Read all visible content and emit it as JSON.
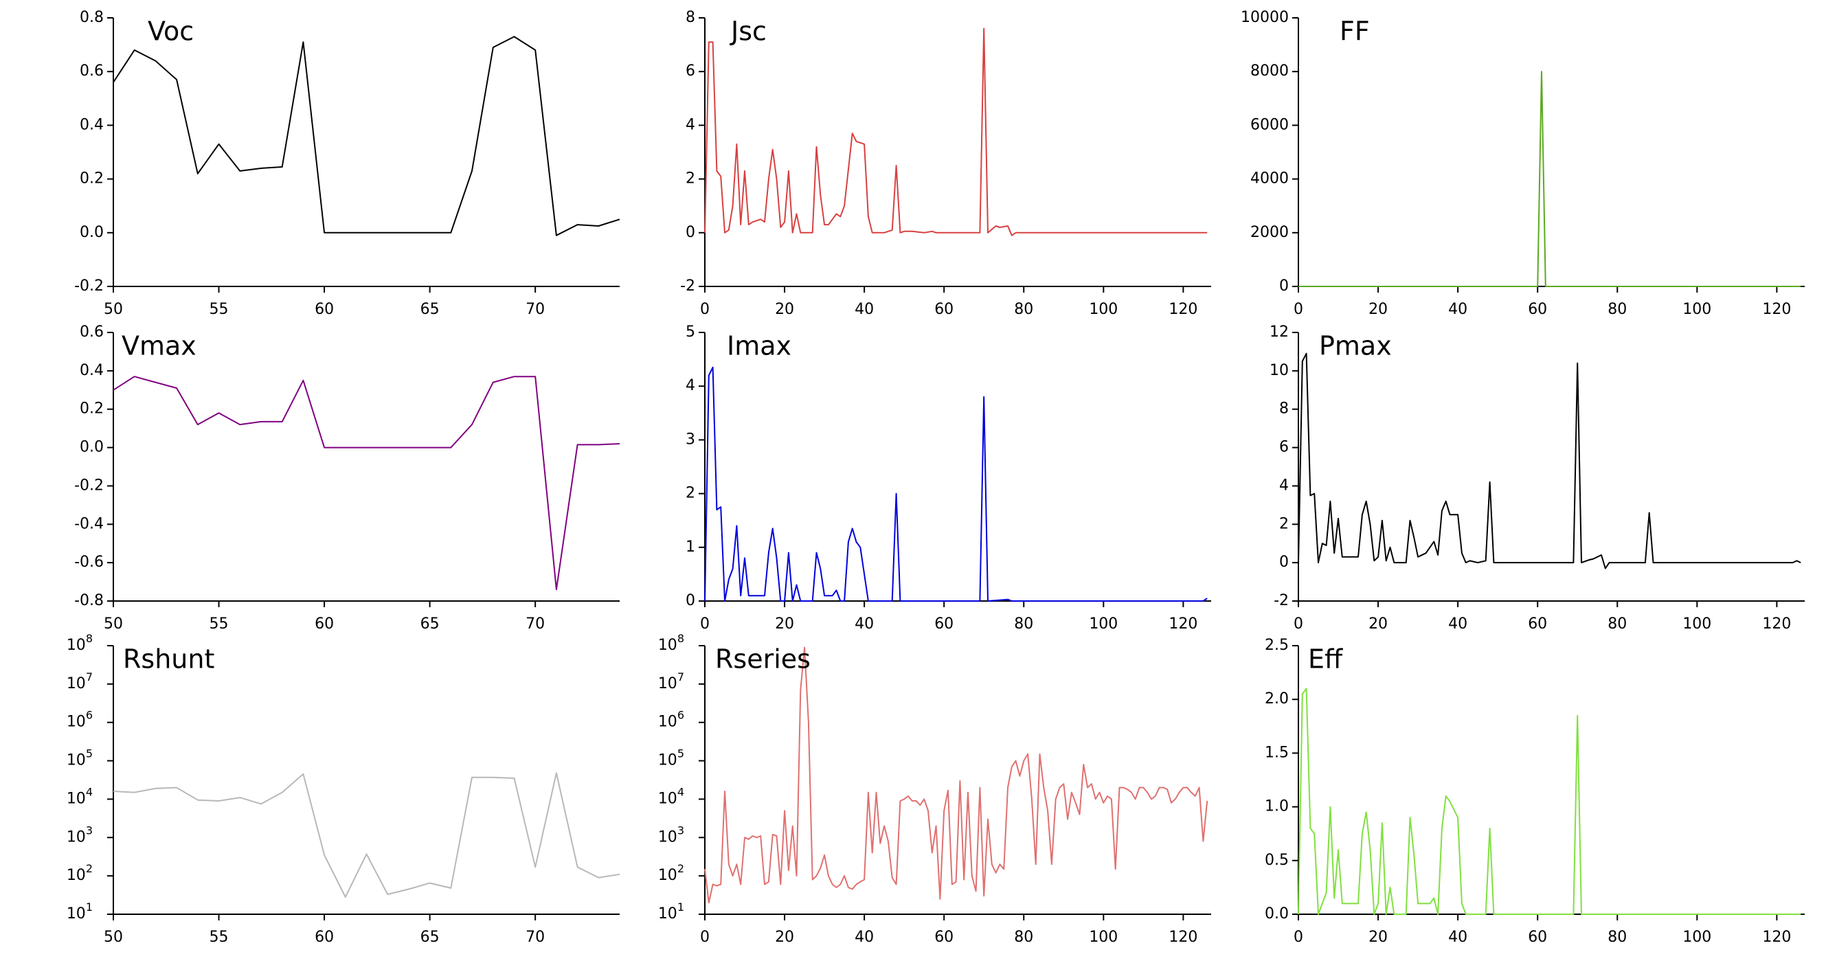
{
  "chart_data": [
    {
      "type": "line",
      "title": "Voc",
      "color": "#000000",
      "xlim": [
        50,
        74
      ],
      "xticks": [
        50,
        55,
        60,
        65,
        70
      ],
      "ylim": [
        -0.2,
        0.8
      ],
      "yticks": [
        -0.2,
        {
          "value": 0,
          "label": "0.0"
        },
        0.2,
        0.4,
        0.6,
        0.8
      ],
      "x": [
        50,
        51,
        52,
        53,
        54,
        55,
        56,
        57,
        58,
        59,
        60,
        61,
        62,
        63,
        64,
        65,
        66,
        67,
        68,
        69,
        70,
        71,
        72,
        73,
        74
      ],
      "values": [
        0.56,
        0.68,
        0.64,
        0.57,
        0.22,
        0.33,
        0.23,
        0.24,
        0.245,
        0.71,
        0,
        0,
        0,
        0,
        0,
        0,
        0,
        0.23,
        0.69,
        0.73,
        0.68,
        -0.01,
        0.03,
        0.025,
        0.05
      ]
    },
    {
      "type": "line",
      "title": "Jsc",
      "color": "#d84040",
      "xlim": [
        0,
        127
      ],
      "xticks": [
        0,
        20,
        40,
        60,
        80,
        100,
        120
      ],
      "ylim": [
        -2,
        8
      ],
      "yticks": [
        -2,
        0,
        2,
        4,
        6,
        8
      ],
      "x": [
        0,
        1,
        2,
        3,
        4,
        5,
        6,
        7,
        8,
        9,
        10,
        11,
        12,
        14,
        15,
        16,
        17,
        18,
        19,
        20,
        21,
        22,
        23,
        24,
        27,
        28,
        29,
        30,
        31,
        32,
        33,
        34,
        35,
        37,
        38,
        40,
        41,
        42,
        45,
        47,
        48,
        49,
        50,
        52,
        55,
        57,
        58,
        69,
        70,
        71,
        73,
        74,
        76,
        77,
        78,
        126
      ],
      "values": [
        0,
        7.1,
        7.1,
        2.3,
        2.1,
        0,
        0.1,
        1.0,
        3.3,
        0.3,
        2.3,
        0.3,
        0.4,
        0.5,
        0.4,
        2.0,
        3.1,
        2.0,
        0.2,
        0.4,
        2.3,
        0,
        0.7,
        0,
        0,
        3.2,
        1.4,
        0.3,
        0.3,
        0.5,
        0.7,
        0.6,
        1.0,
        3.7,
        3.4,
        3.3,
        0.6,
        0,
        0,
        0.1,
        2.5,
        0,
        0.05,
        0.05,
        0,
        0.05,
        0,
        0,
        7.6,
        0,
        0.25,
        0.2,
        0.25,
        -0.1,
        0,
        0
      ]
    },
    {
      "type": "line",
      "title": "FF",
      "color": "#5aaa20",
      "xlim": [
        0,
        127
      ],
      "xticks": [
        0,
        20,
        40,
        60,
        80,
        100,
        120
      ],
      "ylim": [
        0,
        10000
      ],
      "yticks": [
        0,
        2000,
        4000,
        6000,
        8000,
        10000
      ],
      "x": [
        0,
        60,
        61,
        62,
        126
      ],
      "values": [
        0,
        0,
        8000,
        0,
        0
      ]
    },
    {
      "type": "line",
      "title": "Vmax",
      "color": "#800080",
      "xlim": [
        50,
        74
      ],
      "xticks": [
        50,
        55,
        60,
        65,
        70
      ],
      "ylim": [
        -0.8,
        0.6
      ],
      "yticks": [
        -0.8,
        -0.6,
        -0.4,
        -0.2,
        {
          "value": 0,
          "label": "0.0"
        },
        0.2,
        0.4,
        0.6
      ],
      "x": [
        50,
        51,
        52,
        53,
        54,
        55,
        56,
        57,
        58,
        59,
        60,
        61,
        62,
        63,
        64,
        65,
        66,
        67,
        68,
        69,
        70,
        71,
        72,
        73,
        74
      ],
      "values": [
        0.3,
        0.37,
        0.34,
        0.31,
        0.12,
        0.18,
        0.12,
        0.135,
        0.135,
        0.35,
        0,
        0,
        0,
        0,
        0,
        0,
        0,
        0.12,
        0.34,
        0.37,
        0.37,
        -0.74,
        0.015,
        0.015,
        0.02
      ]
    },
    {
      "type": "line",
      "title": "Imax",
      "color": "#0000dd",
      "xlim": [
        0,
        127
      ],
      "xticks": [
        0,
        20,
        40,
        60,
        80,
        100,
        120
      ],
      "ylim": [
        0,
        5
      ],
      "yticks": [
        0,
        1,
        2,
        3,
        4,
        5
      ],
      "x": [
        0,
        1,
        2,
        3,
        4,
        5,
        6,
        7,
        8,
        9,
        10,
        11,
        15,
        16,
        17,
        18,
        19,
        20,
        21,
        22,
        23,
        24,
        27,
        28,
        29,
        30,
        32,
        33,
        34,
        35,
        36,
        37,
        38,
        39,
        40,
        41,
        47,
        48,
        49,
        69,
        70,
        71,
        76,
        77,
        125,
        126
      ],
      "values": [
        0,
        4.2,
        4.35,
        1.7,
        1.75,
        0,
        0.4,
        0.6,
        1.4,
        0.1,
        0.8,
        0.1,
        0.1,
        0.9,
        1.35,
        0.8,
        0,
        0,
        0.9,
        0,
        0.3,
        0,
        0,
        0.9,
        0.6,
        0.1,
        0.1,
        0.2,
        0,
        0,
        1.1,
        1.35,
        1.1,
        1.0,
        0.5,
        0,
        0,
        2.0,
        0,
        0,
        3.8,
        0,
        0.03,
        0,
        0,
        0.05
      ]
    },
    {
      "type": "line",
      "title": "Pmax",
      "color": "#000000",
      "xlim": [
        0,
        127
      ],
      "xticks": [
        0,
        20,
        40,
        60,
        80,
        100,
        120
      ],
      "ylim": [
        -2,
        12
      ],
      "yticks": [
        -2,
        0,
        2,
        4,
        6,
        8,
        10,
        12
      ],
      "x": [
        0,
        1,
        2,
        3,
        4,
        5,
        6,
        7,
        8,
        9,
        10,
        11,
        15,
        16,
        17,
        18,
        19,
        20,
        21,
        22,
        23,
        24,
        27,
        28,
        29,
        30,
        32,
        33,
        34,
        35,
        36,
        37,
        38,
        40,
        41,
        42,
        43,
        45,
        47,
        48,
        49,
        69,
        70,
        71,
        73,
        74,
        76,
        77,
        78,
        87,
        88,
        89,
        124,
        125,
        126
      ],
      "values": [
        0,
        10.5,
        10.9,
        3.5,
        3.6,
        0,
        1.0,
        0.9,
        3.2,
        0.5,
        2.3,
        0.3,
        0.3,
        2.5,
        3.2,
        2.0,
        0.1,
        0.3,
        2.2,
        0.1,
        0.8,
        0,
        0,
        2.2,
        1.3,
        0.3,
        0.5,
        0.8,
        1.1,
        0.4,
        2.7,
        3.2,
        2.5,
        2.5,
        0.5,
        0,
        0.1,
        0,
        0.1,
        4.2,
        0,
        0,
        10.4,
        0,
        0.15,
        0.2,
        0.4,
        -0.3,
        0,
        0,
        2.6,
        0,
        0,
        0.1,
        0
      ]
    },
    {
      "type": "line",
      "title": "Rshunt",
      "color": "#b8b8b8",
      "log_scale": true,
      "xlim": [
        50,
        74
      ],
      "xticks": [
        50,
        55,
        60,
        65,
        70
      ],
      "ylim": [
        10,
        100000000
      ],
      "yticks": [
        {
          "value": 10,
          "label": "10",
          "sup": "1"
        },
        {
          "value": 100,
          "label": "10",
          "sup": "2"
        },
        {
          "value": 1000,
          "label": "10",
          "sup": "3"
        },
        {
          "value": 10000,
          "label": "10",
          "sup": "4"
        },
        {
          "value": 100000,
          "label": "10",
          "sup": "5"
        },
        {
          "value": 1000000,
          "label": "10",
          "sup": "6"
        },
        {
          "value": 10000000,
          "label": "10",
          "sup": "7"
        },
        {
          "value": 100000000,
          "label": "10",
          "sup": "8"
        }
      ],
      "x": [
        50,
        51,
        52,
        53,
        54,
        55,
        56,
        57,
        58,
        59,
        60,
        61,
        62,
        63,
        64,
        65,
        66,
        67,
        68,
        69,
        70,
        71,
        72,
        73,
        74
      ],
      "values": [
        16000,
        15000,
        19000,
        20000,
        9500,
        9000,
        11000,
        7500,
        15000,
        45000,
        350,
        28,
        370,
        33,
        45,
        65,
        48,
        37000,
        37000,
        35000,
        170,
        48000,
        170,
        90,
        110
      ]
    },
    {
      "type": "line",
      "title": "Rseries",
      "color": "#e07070",
      "log_scale": true,
      "xlim": [
        0,
        127
      ],
      "xticks": [
        0,
        20,
        40,
        60,
        80,
        100,
        120
      ],
      "ylim": [
        10,
        100000000
      ],
      "yticks": [
        {
          "value": 10,
          "label": "10",
          "sup": "1"
        },
        {
          "value": 100,
          "label": "10",
          "sup": "2"
        },
        {
          "value": 1000,
          "label": "10",
          "sup": "3"
        },
        {
          "value": 10000,
          "label": "10",
          "sup": "4"
        },
        {
          "value": 100000,
          "label": "10",
          "sup": "5"
        },
        {
          "value": 1000000,
          "label": "10",
          "sup": "6"
        },
        {
          "value": 10000000,
          "label": "10",
          "sup": "7"
        },
        {
          "value": 100000000,
          "label": "10",
          "sup": "8"
        }
      ],
      "x": [
        0,
        1,
        2,
        3,
        4,
        5,
        6,
        7,
        8,
        9,
        10,
        11,
        12,
        13,
        14,
        15,
        16,
        17,
        18,
        19,
        20,
        21,
        22,
        23,
        24,
        25,
        26,
        27,
        28,
        29,
        30,
        31,
        32,
        33,
        34,
        35,
        36,
        37,
        38,
        39,
        40,
        41,
        42,
        43,
        44,
        45,
        46,
        47,
        48,
        49,
        50,
        51,
        52,
        53,
        54,
        55,
        56,
        57,
        58,
        59,
        60,
        61,
        62,
        63,
        64,
        65,
        66,
        67,
        68,
        69,
        70,
        71,
        72,
        73,
        74,
        75,
        76,
        77,
        78,
        79,
        80,
        81,
        82,
        83,
        84,
        85,
        86,
        87,
        88,
        89,
        90,
        91,
        92,
        93,
        94,
        95,
        96,
        97,
        98,
        99,
        100,
        101,
        102,
        103,
        104,
        105,
        106,
        107,
        108,
        109,
        110,
        111,
        112,
        113,
        114,
        115,
        116,
        117,
        118,
        119,
        120,
        121,
        122,
        123,
        124,
        125,
        126
      ],
      "values": [
        150,
        20,
        60,
        55,
        60,
        16000,
        200,
        100,
        200,
        60,
        1000,
        900,
        1100,
        1000,
        1100,
        60,
        70,
        1200,
        1100,
        60,
        5000,
        140,
        2000,
        100,
        7000000,
        90000000,
        1000000,
        80,
        100,
        160,
        350,
        100,
        60,
        50,
        60,
        100,
        50,
        45,
        60,
        70,
        80,
        15000,
        400,
        15000,
        700,
        2000,
        800,
        90,
        60,
        9000,
        10000,
        12000,
        9000,
        9000,
        7000,
        10000,
        5000,
        400,
        2000,
        25,
        5000,
        17000,
        60,
        70,
        30000,
        80,
        15000,
        100,
        40,
        20000,
        30,
        3000,
        200,
        120,
        200,
        150,
        20000,
        70000,
        100000,
        40000,
        100000,
        150000,
        10000,
        200,
        150000,
        20000,
        5000,
        200,
        10000,
        20000,
        25000,
        3000,
        15000,
        8000,
        4000,
        80000,
        20000,
        25000,
        10000,
        15000,
        8000,
        12000,
        10000,
        150,
        20000,
        20000,
        18000,
        15000,
        10000,
        20000,
        20000,
        15000,
        10000,
        12000,
        20000,
        20000,
        18000,
        8000,
        10000,
        15000,
        20000,
        20000,
        15000,
        12000,
        20000,
        800,
        9000
      ]
    },
    {
      "type": "line",
      "title": "Eff",
      "color": "#80e040",
      "xlim": [
        0,
        127
      ],
      "xticks": [
        0,
        20,
        40,
        60,
        80,
        100,
        120
      ],
      "ylim": [
        0,
        2.5
      ],
      "yticks": [
        {
          "value": 0,
          "label": "0.0"
        },
        0.5,
        {
          "value": 1,
          "label": "1.0"
        },
        1.5,
        {
          "value": 2,
          "label": "2.0"
        },
        2.5
      ],
      "x": [
        0,
        1,
        2,
        3,
        4,
        5,
        7,
        8,
        9,
        10,
        11,
        15,
        16,
        17,
        18,
        19,
        20,
        21,
        22,
        23,
        24,
        27,
        28,
        29,
        30,
        33,
        34,
        35,
        36,
        37,
        38,
        40,
        41,
        42,
        47,
        48,
        49,
        69,
        70,
        71,
        126
      ],
      "values": [
        0,
        2.05,
        2.1,
        0.8,
        0.75,
        0,
        0.2,
        1.0,
        0.15,
        0.6,
        0.1,
        0.1,
        0.75,
        0.95,
        0.6,
        0,
        0.1,
        0.85,
        0,
        0.25,
        0,
        0,
        0.9,
        0.55,
        0.1,
        0.1,
        0.15,
        0,
        0.8,
        1.1,
        1.05,
        0.9,
        0.1,
        0,
        0,
        0.8,
        0,
        0,
        1.85,
        0,
        0
      ]
    }
  ]
}
